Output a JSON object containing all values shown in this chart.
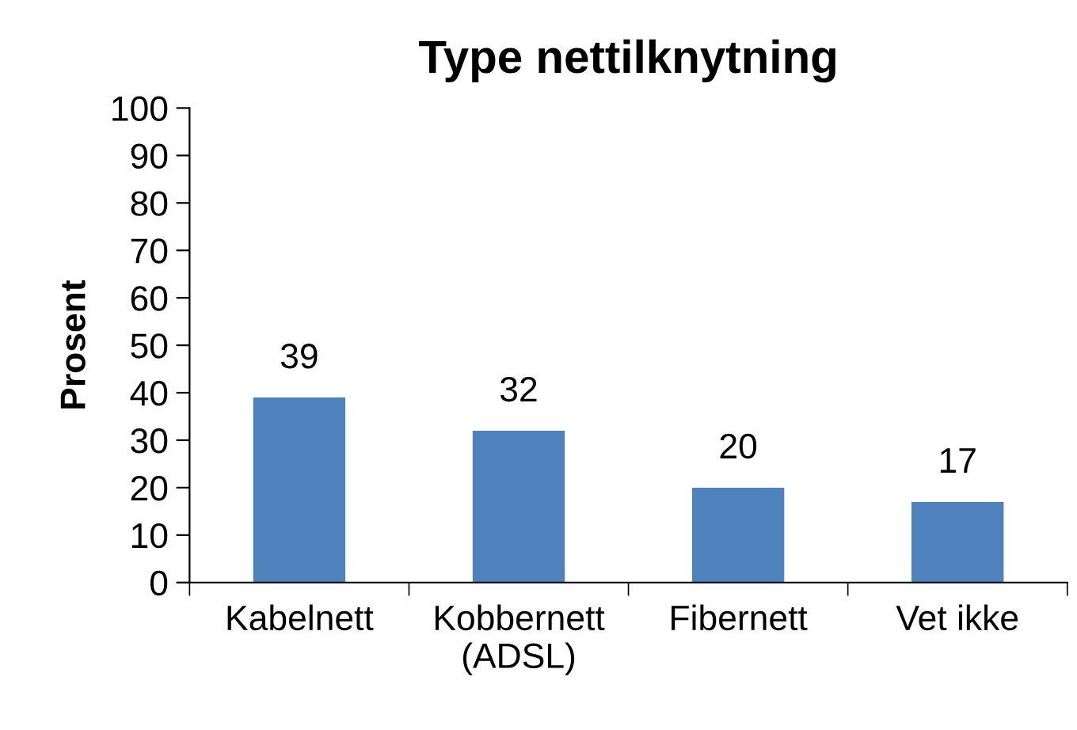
{
  "chart_data": {
    "type": "bar",
    "title": "Type nettilknytning",
    "ylabel": "Prosent",
    "categories": [
      "Kabelnett",
      "Kobbernett\n(ADSL)",
      "Fibernett",
      "Vet ikke"
    ],
    "values": [
      39,
      32,
      20,
      17
    ],
    "color": "#4f81bd",
    "ylim": [
      0,
      100
    ],
    "yticks": [
      0,
      10,
      20,
      30,
      40,
      50,
      60,
      70,
      80,
      90,
      100
    ],
    "grid": false,
    "legend": false,
    "data_labels": true
  }
}
